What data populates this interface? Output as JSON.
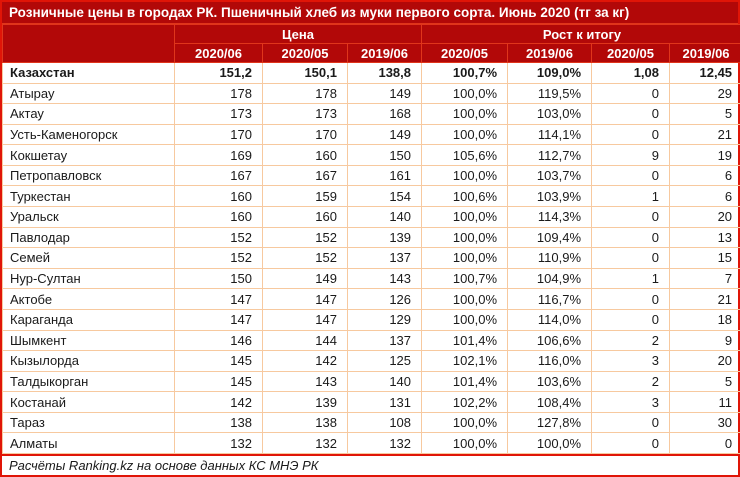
{
  "title": "Розничные цены в городах РК. Пшеничный хлеб из муки первого сорта. Июнь 2020 (тг за кг)",
  "table": {
    "corner_label": "",
    "groups": [
      {
        "label": "Цена",
        "span": 3
      },
      {
        "label": "Рост к итогу",
        "span": 4
      }
    ],
    "sub_headers": [
      "2020/06",
      "2020/05",
      "2019/06",
      "2020/05",
      "2019/06",
      "2020/05",
      "2019/06"
    ],
    "rows": [
      {
        "name": "Казахстан",
        "bold": true,
        "values": [
          "151,2",
          "150,1",
          "138,8",
          "100,7%",
          "109,0%",
          "1,08",
          "12,45"
        ]
      },
      {
        "name": "Атырау",
        "bold": false,
        "values": [
          "178",
          "178",
          "149",
          "100,0%",
          "119,5%",
          "0",
          "29"
        ]
      },
      {
        "name": "Актау",
        "bold": false,
        "values": [
          "173",
          "173",
          "168",
          "100,0%",
          "103,0%",
          "0",
          "5"
        ]
      },
      {
        "name": "Усть-Каменогорск",
        "bold": false,
        "values": [
          "170",
          "170",
          "149",
          "100,0%",
          "114,1%",
          "0",
          "21"
        ]
      },
      {
        "name": "Кокшетау",
        "bold": false,
        "values": [
          "169",
          "160",
          "150",
          "105,6%",
          "112,7%",
          "9",
          "19"
        ]
      },
      {
        "name": "Петропавловск",
        "bold": false,
        "values": [
          "167",
          "167",
          "161",
          "100,0%",
          "103,7%",
          "0",
          "6"
        ]
      },
      {
        "name": "Туркестан",
        "bold": false,
        "values": [
          "160",
          "159",
          "154",
          "100,6%",
          "103,9%",
          "1",
          "6"
        ]
      },
      {
        "name": "Уральск",
        "bold": false,
        "values": [
          "160",
          "160",
          "140",
          "100,0%",
          "114,3%",
          "0",
          "20"
        ]
      },
      {
        "name": "Павлодар",
        "bold": false,
        "values": [
          "152",
          "152",
          "139",
          "100,0%",
          "109,4%",
          "0",
          "13"
        ]
      },
      {
        "name": "Семей",
        "bold": false,
        "values": [
          "152",
          "152",
          "137",
          "100,0%",
          "110,9%",
          "0",
          "15"
        ]
      },
      {
        "name": "Нур-Султан",
        "bold": false,
        "values": [
          "150",
          "149",
          "143",
          "100,7%",
          "104,9%",
          "1",
          "7"
        ]
      },
      {
        "name": "Актобе",
        "bold": false,
        "values": [
          "147",
          "147",
          "126",
          "100,0%",
          "116,7%",
          "0",
          "21"
        ]
      },
      {
        "name": "Караганда",
        "bold": false,
        "values": [
          "147",
          "147",
          "129",
          "100,0%",
          "114,0%",
          "0",
          "18"
        ]
      },
      {
        "name": "Шымкент",
        "bold": false,
        "values": [
          "146",
          "144",
          "137",
          "101,4%",
          "106,6%",
          "2",
          "9"
        ]
      },
      {
        "name": "Кызылорда",
        "bold": false,
        "values": [
          "145",
          "142",
          "125",
          "102,1%",
          "116,0%",
          "3",
          "20"
        ]
      },
      {
        "name": "Талдыкорган",
        "bold": false,
        "values": [
          "145",
          "143",
          "140",
          "101,4%",
          "103,6%",
          "2",
          "5"
        ]
      },
      {
        "name": "Костанай",
        "bold": false,
        "values": [
          "142",
          "139",
          "131",
          "102,2%",
          "108,4%",
          "3",
          "11"
        ]
      },
      {
        "name": "Тараз",
        "bold": false,
        "values": [
          "138",
          "138",
          "108",
          "100,0%",
          "127,8%",
          "0",
          "30"
        ]
      },
      {
        "name": "Алматы",
        "bold": false,
        "values": [
          "132",
          "132",
          "132",
          "100,0%",
          "100,0%",
          "0",
          "0"
        ]
      }
    ]
  },
  "footer": {
    "source_note": "Расчёты Ranking.kz на основе данных КС МНЭ РК"
  },
  "colors": {
    "header_bg": "#b20808",
    "header_separator": "#e0351b",
    "outer_border": "#e01507",
    "grid_border": "#f7c99f"
  },
  "chart_data": {
    "type": "table",
    "title": "Розничные цены в городах РК. Пшеничный хлеб из муки первого сорта. Июнь 2020 (тг за кг)",
    "column_groups": [
      "Цена",
      "Цена",
      "Цена",
      "Рост к итогу",
      "Рост к итогу",
      "Рост к итогу",
      "Рост к итогу"
    ],
    "columns": [
      "2020/06",
      "2020/05",
      "2019/06",
      "2020/05",
      "2019/06",
      "2020/05",
      "2019/06"
    ],
    "rows": [
      [
        "Казахстан",
        151.2,
        150.1,
        138.8,
        "100,7%",
        "109,0%",
        1.08,
        12.45
      ],
      [
        "Атырау",
        178,
        178,
        149,
        "100,0%",
        "119,5%",
        0,
        29
      ],
      [
        "Актау",
        173,
        173,
        168,
        "100,0%",
        "103,0%",
        0,
        5
      ],
      [
        "Усть-Каменогорск",
        170,
        170,
        149,
        "100,0%",
        "114,1%",
        0,
        21
      ],
      [
        "Кокшетау",
        169,
        160,
        150,
        "105,6%",
        "112,7%",
        9,
        19
      ],
      [
        "Петропавловск",
        167,
        167,
        161,
        "100,0%",
        "103,7%",
        0,
        6
      ],
      [
        "Туркестан",
        160,
        159,
        154,
        "100,6%",
        "103,9%",
        1,
        6
      ],
      [
        "Уральск",
        160,
        160,
        140,
        "100,0%",
        "114,3%",
        0,
        20
      ],
      [
        "Павлодар",
        152,
        152,
        139,
        "100,0%",
        "109,4%",
        0,
        13
      ],
      [
        "Семей",
        152,
        152,
        137,
        "100,0%",
        "110,9%",
        0,
        15
      ],
      [
        "Нур-Султан",
        150,
        149,
        143,
        "100,7%",
        "104,9%",
        1,
        7
      ],
      [
        "Актобе",
        147,
        147,
        126,
        "100,0%",
        "116,7%",
        0,
        21
      ],
      [
        "Караганда",
        147,
        147,
        129,
        "100,0%",
        "114,0%",
        0,
        18
      ],
      [
        "Шымкент",
        146,
        144,
        137,
        "101,4%",
        "106,6%",
        2,
        9
      ],
      [
        "Кызылорда",
        145,
        142,
        125,
        "102,1%",
        "116,0%",
        3,
        20
      ],
      [
        "Талдыкорган",
        145,
        143,
        140,
        "101,4%",
        "103,6%",
        2,
        5
      ],
      [
        "Костанай",
        142,
        139,
        131,
        "102,2%",
        "108,4%",
        3,
        11
      ],
      [
        "Тараз",
        138,
        138,
        108,
        "100,0%",
        "127,8%",
        0,
        30
      ],
      [
        "Алматы",
        132,
        132,
        132,
        "100,0%",
        "100,0%",
        0,
        0
      ]
    ],
    "source_note": "Расчёты Ranking.kz на основе данных КС МНЭ РК"
  }
}
